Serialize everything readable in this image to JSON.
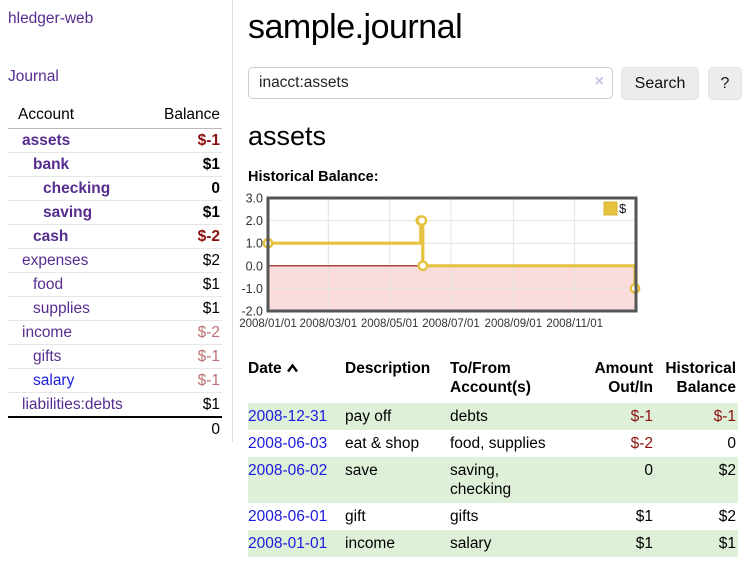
{
  "sidebar": {
    "brand": "hledger-web",
    "journal_link": "Journal",
    "accounts": {
      "header_account": "Account",
      "header_balance": "Balance",
      "rows": [
        {
          "label": "assets",
          "balance": "$-1",
          "indent": 1,
          "emph": true,
          "neg": "strong",
          "link": "purple"
        },
        {
          "label": "bank",
          "balance": "$1",
          "indent": 2,
          "emph": true,
          "neg": "none",
          "link": "purple"
        },
        {
          "label": "checking",
          "balance": "0",
          "indent": 3,
          "emph": true,
          "neg": "none",
          "link": "purple"
        },
        {
          "label": "saving",
          "balance": "$1",
          "indent": 3,
          "emph": true,
          "neg": "none",
          "link": "purple"
        },
        {
          "label": "cash",
          "balance": "$-2",
          "indent": 2,
          "emph": true,
          "neg": "strong",
          "link": "purple"
        },
        {
          "label": "expenses",
          "balance": "$2",
          "indent": 1,
          "emph": false,
          "neg": "none",
          "link": "purple"
        },
        {
          "label": "food",
          "balance": "$1",
          "indent": 2,
          "emph": false,
          "neg": "none",
          "link": "purple"
        },
        {
          "label": "supplies",
          "balance": "$1",
          "indent": 2,
          "emph": false,
          "neg": "none",
          "link": "purple"
        },
        {
          "label": "income",
          "balance": "$-2",
          "indent": 1,
          "emph": false,
          "neg": "soft",
          "link": "purple"
        },
        {
          "label": "gifts",
          "balance": "$-1",
          "indent": 2,
          "emph": false,
          "neg": "soft",
          "link": "purple"
        },
        {
          "label": "salary",
          "balance": "$-1",
          "indent": 2,
          "emph": false,
          "neg": "soft",
          "link": "blue"
        },
        {
          "label": "liabilities:debts",
          "balance": "$1",
          "indent": 1,
          "emph": false,
          "neg": "none",
          "link": "purple"
        }
      ],
      "total": "0"
    }
  },
  "main": {
    "title": "sample.journal",
    "search": {
      "value": "inacct:assets",
      "clear_icon": "×",
      "button_label": "Search",
      "help_label": "?"
    },
    "account_heading": "assets",
    "register": {
      "headers": [
        "Date",
        "Description",
        "To/From Account(s)",
        "Amount Out/In",
        "Historical Balance"
      ],
      "rows": [
        {
          "date": "2008-12-31",
          "description": "pay off",
          "accounts": "debts",
          "amount": "$-1",
          "balance": "$-1",
          "amount_neg": true,
          "balance_neg": true
        },
        {
          "date": "2008-06-03",
          "description": "eat & shop",
          "accounts": "food, supplies",
          "amount": "$-2",
          "balance": "0",
          "amount_neg": true,
          "balance_neg": false
        },
        {
          "date": "2008-06-02",
          "description": "save",
          "accounts": "saving,\nchecking",
          "amount": "0",
          "balance": "$2",
          "amount_neg": false,
          "balance_neg": false
        },
        {
          "date": "2008-06-01",
          "description": "gift",
          "accounts": "gifts",
          "amount": "$1",
          "balance": "$2",
          "amount_neg": false,
          "balance_neg": false
        },
        {
          "date": "2008-01-01",
          "description": "income",
          "accounts": "salary",
          "amount": "$1",
          "balance": "$1",
          "amount_neg": false,
          "balance_neg": false
        }
      ]
    }
  },
  "chart_data": {
    "type": "line",
    "step": true,
    "title": "Historical Balance:",
    "series": [
      {
        "name": "$",
        "color": "#e6c33e",
        "points": [
          [
            "2008-01-01",
            1
          ],
          [
            "2008-06-01",
            2
          ],
          [
            "2008-06-02",
            2
          ],
          [
            "2008-06-03",
            0
          ],
          [
            "2008-12-31",
            -1
          ]
        ]
      }
    ],
    "x_range": [
      "2008-01-01",
      "2009-01-01"
    ],
    "x_ticks": [
      {
        "date": "2008-01-01",
        "label": "2008/01/01"
      },
      {
        "date": "2008-03-01",
        "label": "2008/03/01"
      },
      {
        "date": "2008-05-01",
        "label": "2008/05/01"
      },
      {
        "date": "2008-07-01",
        "label": "2008/07/01"
      },
      {
        "date": "2008-09-01",
        "label": "2008/09/01"
      },
      {
        "date": "2008-11-01",
        "label": "2008/11/01"
      }
    ],
    "y_ticks": [
      {
        "v": 3,
        "label": "3.0"
      },
      {
        "v": 2,
        "label": "2.0"
      },
      {
        "v": 1,
        "label": "1.0"
      },
      {
        "v": 0,
        "label": "0.0"
      },
      {
        "v": -1,
        "label": "-1.0"
      },
      {
        "v": -2,
        "label": "-2.0"
      }
    ],
    "ylim": [
      -2,
      3
    ],
    "grid": true,
    "legend_position": "top-right",
    "colors": {
      "frame": "#555555",
      "gridline": "#e3e3e3",
      "zero_line": "#8b0f0f",
      "negative_region_fill": "#fbdcdc",
      "marker_fill": "#ffffff",
      "axis_text": "#333333"
    }
  }
}
